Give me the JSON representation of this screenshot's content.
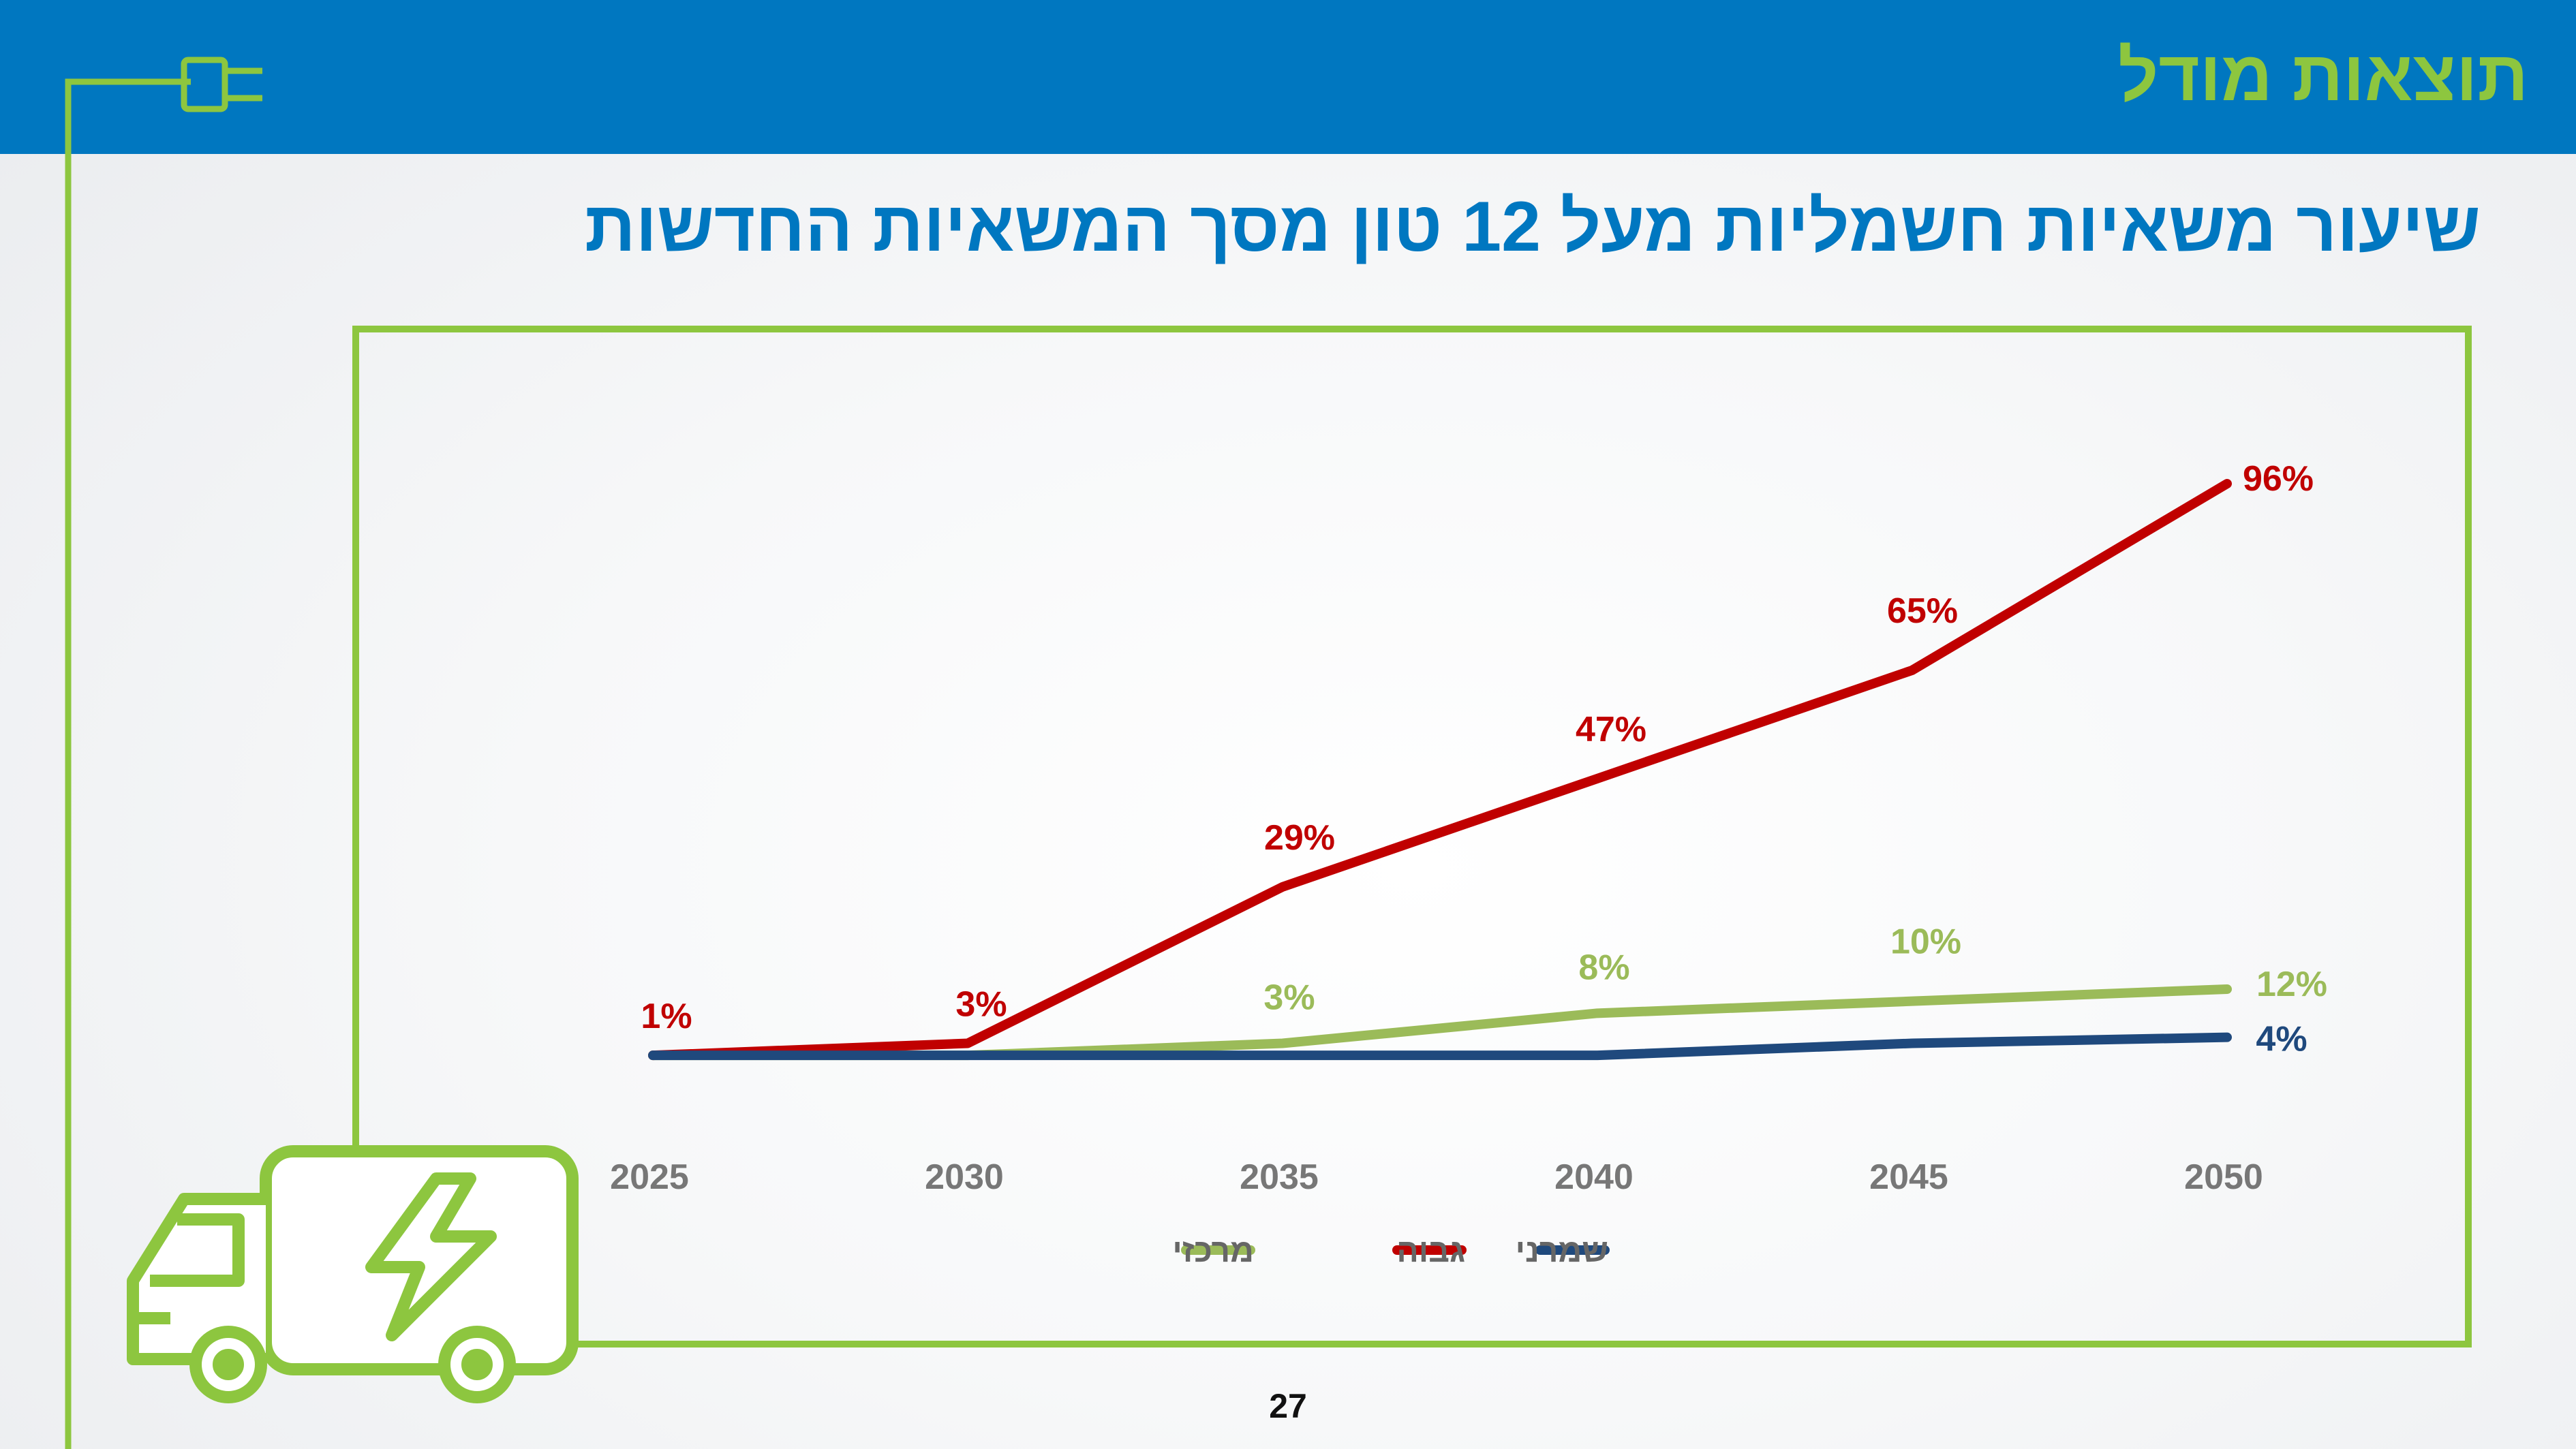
{
  "header": {
    "title": "תוצאות מודל"
  },
  "slide": {
    "title": "שיעור משאיות חשמליות מעל 12 טון מסך המשאיות החדשות",
    "page_number": "27"
  },
  "colors": {
    "header_bg": "#0077c0",
    "accent_green": "#8dc63f",
    "title_blue": "#0077c0"
  },
  "icons": [
    "plug-icon",
    "electric-truck-icon",
    "lightning-bolt-icon"
  ],
  "chart_data": {
    "type": "line",
    "title": "",
    "xlabel": "",
    "ylabel": "",
    "categories": [
      "2025",
      "2030",
      "2035",
      "2040",
      "2045",
      "2050"
    ],
    "ylim": [
      0,
      100
    ],
    "grid": false,
    "legend_position": "bottom",
    "series": [
      {
        "name": "מרכזי",
        "color": "#9bbb59",
        "values": [
          1,
          1,
          3,
          8,
          10,
          12
        ],
        "labels": [
          "",
          "",
          "3%",
          "8%",
          "10%",
          "12%"
        ]
      },
      {
        "name": "גבוה",
        "color": "#c00000",
        "values": [
          1,
          3,
          29,
          47,
          65,
          96
        ],
        "labels": [
          "1%",
          "3%",
          "29%",
          "47%",
          "65%",
          "96%"
        ]
      },
      {
        "name": "שמרני",
        "color": "#1f497d",
        "values": [
          1,
          1,
          1,
          1,
          3,
          4
        ],
        "labels": [
          "",
          "",
          "",
          "",
          "",
          "4%"
        ]
      }
    ]
  }
}
